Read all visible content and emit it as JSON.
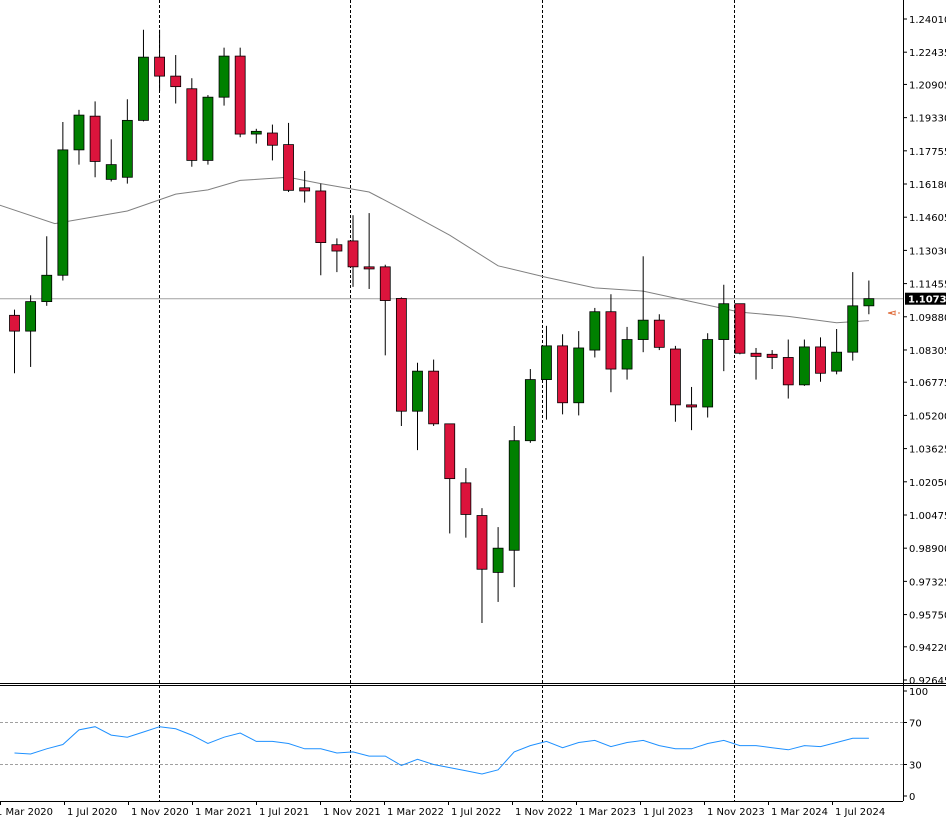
{
  "chart_data": [
    {
      "type": "candlestick",
      "x_labels": [
        "1 Mar 2020",
        "1 Jul 2020",
        "1 Nov 2020",
        "1 Mar 2021",
        "1 Jul 2021",
        "1 Nov 2021",
        "1 Mar 2022",
        "1 Jul 2022",
        "1 Nov 2022",
        "1 Mar 2023",
        "1 Jul 2023",
        "1 Nov 2023",
        "1 Mar 2024",
        "1 Jul 2024"
      ],
      "y_ticks": [
        "1.24010",
        "1.22435",
        "1.20905",
        "1.19330",
        "1.17755",
        "1.16180",
        "1.14605",
        "1.13030",
        "1.11455",
        "1.09880",
        "1.08305",
        "1.06775",
        "1.05200",
        "1.03625",
        "1.02050",
        "1.00475",
        "0.98900",
        "0.97325",
        "0.95750",
        "0.94220",
        "0.92645"
      ],
      "ylim": [
        0.92645,
        1.246
      ],
      "current_price": "1.10738",
      "bull_color": "#008000",
      "bear_color": "#dc143c",
      "grid_color": "#000000",
      "candles": [
        {
          "o": 1.0995,
          "h": 1.1022,
          "l": 1.072,
          "c": 1.092
        },
        {
          "o": 1.092,
          "h": 1.109,
          "l": 1.075,
          "c": 1.106
        },
        {
          "o": 1.106,
          "h": 1.137,
          "l": 1.104,
          "c": 1.1185
        },
        {
          "o": 1.1185,
          "h": 1.1912,
          "l": 1.116,
          "c": 1.178
        },
        {
          "o": 1.178,
          "h": 1.197,
          "l": 1.171,
          "c": 1.1945
        },
        {
          "o": 1.194,
          "h": 1.201,
          "l": 1.165,
          "c": 1.1725
        },
        {
          "o": 1.164,
          "h": 1.183,
          "l": 1.163,
          "c": 1.171
        },
        {
          "o": 1.165,
          "h": 1.202,
          "l": 1.162,
          "c": 1.192
        },
        {
          "o": 1.192,
          "h": 1.235,
          "l": 1.1915,
          "c": 1.222
        },
        {
          "o": 1.222,
          "h": 1.235,
          "l": 1.206,
          "c": 1.213
        },
        {
          "o": 1.213,
          "h": 1.223,
          "l": 1.2,
          "c": 1.208
        },
        {
          "o": 1.207,
          "h": 1.212,
          "l": 1.17,
          "c": 1.173
        },
        {
          "o": 1.173,
          "h": 1.204,
          "l": 1.171,
          "c": 1.203
        },
        {
          "o": 1.203,
          "h": 1.2265,
          "l": 1.199,
          "c": 1.2225
        },
        {
          "o": 1.2225,
          "h": 1.2265,
          "l": 1.184,
          "c": 1.1855
        },
        {
          "o": 1.1855,
          "h": 1.188,
          "l": 1.181,
          "c": 1.1868
        },
        {
          "o": 1.186,
          "h": 1.19,
          "l": 1.173,
          "c": 1.1802
        },
        {
          "o": 1.1805,
          "h": 1.1908,
          "l": 1.158,
          "c": 1.1588
        },
        {
          "o": 1.16,
          "h": 1.168,
          "l": 1.153,
          "c": 1.1585
        },
        {
          "o": 1.1585,
          "h": 1.162,
          "l": 1.1185,
          "c": 1.134
        },
        {
          "o": 1.133,
          "h": 1.136,
          "l": 1.12,
          "c": 1.13
        },
        {
          "o": 1.1348,
          "h": 1.147,
          "l": 1.113,
          "c": 1.1225
        },
        {
          "o": 1.1225,
          "h": 1.148,
          "l": 1.112,
          "c": 1.1215
        },
        {
          "o": 1.1225,
          "h": 1.1235,
          "l": 1.0805,
          "c": 1.1065
        },
        {
          "o": 1.1075,
          "h": 1.108,
          "l": 1.047,
          "c": 1.054
        },
        {
          "o": 1.054,
          "h": 1.077,
          "l": 1.0355,
          "c": 1.073
        },
        {
          "o": 1.073,
          "h": 1.0785,
          "l": 1.047,
          "c": 1.048
        },
        {
          "o": 1.048,
          "h": 1.048,
          "l": 0.996,
          "c": 1.022
        },
        {
          "o": 1.02,
          "h": 1.027,
          "l": 0.994,
          "c": 1.005
        },
        {
          "o": 1.0045,
          "h": 1.008,
          "l": 0.9535,
          "c": 0.979
        },
        {
          "o": 0.9775,
          "h": 0.999,
          "l": 0.9635,
          "c": 0.989
        },
        {
          "o": 0.988,
          "h": 1.047,
          "l": 0.9705,
          "c": 1.04
        },
        {
          "o": 1.04,
          "h": 1.074,
          "l": 1.039,
          "c": 1.069
        },
        {
          "o": 1.069,
          "h": 1.0945,
          "l": 1.05,
          "c": 1.085
        },
        {
          "o": 1.085,
          "h": 1.0905,
          "l": 1.0525,
          "c": 1.058
        },
        {
          "o": 1.058,
          "h": 1.092,
          "l": 1.052,
          "c": 1.084
        },
        {
          "o": 1.083,
          "h": 1.103,
          "l": 1.0795,
          "c": 1.1012
        },
        {
          "o": 1.1012,
          "h": 1.1095,
          "l": 1.063,
          "c": 1.074
        },
        {
          "o": 1.074,
          "h": 1.094,
          "l": 1.069,
          "c": 1.088
        },
        {
          "o": 1.088,
          "h": 1.1275,
          "l": 1.082,
          "c": 1.0972
        },
        {
          "o": 1.0972,
          "h": 1.1,
          "l": 1.083,
          "c": 1.0843
        },
        {
          "o": 1.0835,
          "h": 1.085,
          "l": 1.049,
          "c": 1.057
        },
        {
          "o": 1.057,
          "h": 1.0655,
          "l": 1.045,
          "c": 1.056
        },
        {
          "o": 1.056,
          "h": 1.091,
          "l": 1.051,
          "c": 1.088
        },
        {
          "o": 1.088,
          "h": 1.114,
          "l": 1.073,
          "c": 1.105
        },
        {
          "o": 1.105,
          "h": 1.105,
          "l": 1.081,
          "c": 1.0815
        },
        {
          "o": 1.0815,
          "h": 1.084,
          "l": 1.069,
          "c": 1.08
        },
        {
          "o": 1.081,
          "h": 1.083,
          "l": 1.074,
          "c": 1.0795
        },
        {
          "o": 1.0795,
          "h": 1.088,
          "l": 1.06,
          "c": 1.0665
        },
        {
          "o": 1.0665,
          "h": 1.088,
          "l": 1.066,
          "c": 1.0845
        },
        {
          "o": 1.0845,
          "h": 1.089,
          "l": 1.068,
          "c": 1.072
        },
        {
          "o": 1.073,
          "h": 1.093,
          "l": 1.0715,
          "c": 1.082
        },
        {
          "o": 1.082,
          "h": 1.12,
          "l": 1.078,
          "c": 1.104
        },
        {
          "o": 1.104,
          "h": 1.116,
          "l": 1.1,
          "c": 1.1074
        }
      ],
      "moving_average": {
        "color": "#808080",
        "points": [
          [
            -1,
            1.152
          ],
          [
            2.5,
            1.143
          ],
          [
            7,
            1.149
          ],
          [
            10,
            1.157
          ],
          [
            12,
            1.159
          ],
          [
            14,
            1.1635
          ],
          [
            17,
            1.165
          ],
          [
            19,
            1.162
          ],
          [
            22,
            1.158
          ],
          [
            24,
            1.15
          ],
          [
            27,
            1.1375
          ],
          [
            30,
            1.123
          ],
          [
            33,
            1.1175
          ],
          [
            36,
            1.1125
          ],
          [
            39,
            1.111
          ],
          [
            42,
            1.106
          ],
          [
            45,
            1.101
          ],
          [
            48,
            1.099
          ],
          [
            51,
            1.096
          ],
          [
            53,
            1.097
          ]
        ]
      }
    },
    {
      "type": "line",
      "y_ticks": [
        "100",
        "70",
        "30",
        "0"
      ],
      "ylim": [
        0,
        100
      ],
      "levels": [
        70,
        30
      ],
      "line_color": "#1e90ff",
      "values": [
        41,
        40,
        45,
        49,
        63,
        66,
        58,
        56,
        61,
        66,
        64,
        58,
        50,
        56,
        60,
        52,
        52,
        50,
        45,
        45,
        41,
        42,
        38,
        38,
        29,
        35,
        30,
        27,
        24,
        21,
        25,
        42,
        48,
        52,
        46,
        51,
        53,
        47,
        51,
        53,
        48,
        45,
        45,
        50,
        53,
        48,
        48,
        46,
        44,
        48,
        47,
        51,
        55,
        55
      ]
    }
  ]
}
